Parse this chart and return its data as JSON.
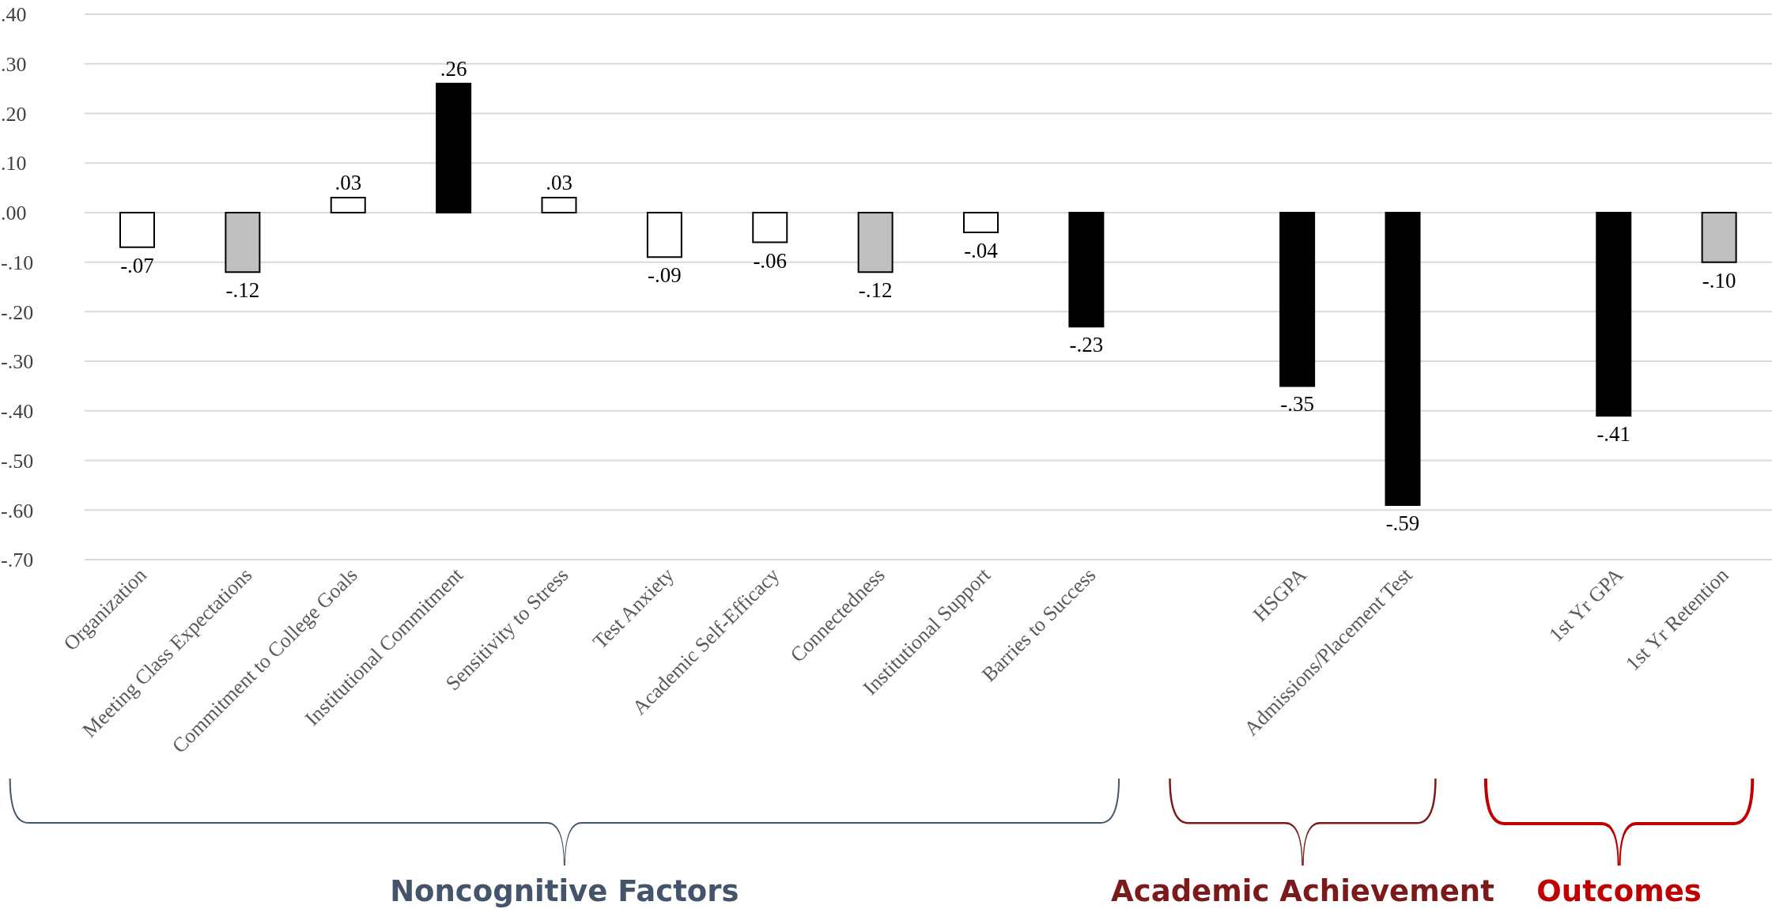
{
  "chart_data": {
    "type": "bar",
    "categories": [
      "Organization",
      "Meeting Class Expectations",
      "Commitment to College Goals",
      "Institutional Commitment",
      "Sensitivity to Stress",
      "Test Anxiety",
      "Academic Self-Efficacy",
      "Connectedness",
      "Institutional Support",
      "Barries to Success",
      null,
      "HSGPA",
      "Admissions/Placement Test",
      null,
      "1st Yr GPA",
      "1st Yr Retention"
    ],
    "values": [
      -0.07,
      -0.12,
      0.03,
      0.26,
      0.03,
      -0.09,
      -0.06,
      -0.12,
      -0.04,
      -0.23,
      null,
      -0.35,
      -0.59,
      null,
      -0.41,
      -0.1
    ],
    "value_labels": [
      "-.07",
      "-.12",
      ".03",
      ".26",
      ".03",
      "-.09",
      "-.06",
      "-.12",
      "-.04",
      "-.23",
      null,
      "-.35",
      "-.59",
      null,
      "-.41",
      "-.10"
    ],
    "colors": [
      "#ffffff",
      "#bfbfbf",
      "#ffffff",
      "#000000",
      "#ffffff",
      "#ffffff",
      "#ffffff",
      "#bfbfbf",
      "#ffffff",
      "#000000",
      null,
      "#000000",
      "#000000",
      null,
      "#000000",
      "#bfbfbf"
    ],
    "ylim": [
      -0.7,
      0.4
    ],
    "yticks": [
      {
        "value": 0.4,
        "label": ".40"
      },
      {
        "value": 0.3,
        "label": ".30"
      },
      {
        "value": 0.2,
        "label": ".20"
      },
      {
        "value": 0.1,
        "label": ".10"
      },
      {
        "value": 0,
        "label": ".00"
      },
      {
        "value": -0.1,
        "label": "-.10"
      },
      {
        "value": -0.2,
        "label": "-.20"
      },
      {
        "value": -0.3,
        "label": "-.30"
      },
      {
        "value": -0.4,
        "label": "-.40"
      },
      {
        "value": -0.5,
        "label": "-.50"
      },
      {
        "value": -0.6,
        "label": "-.60"
      },
      {
        "value": -0.7,
        "label": "-.70"
      }
    ],
    "grid": "y",
    "legend": false,
    "annotations": [
      "Noncognitive Factors",
      "Academic Achievement",
      "Outcomes"
    ]
  }
}
